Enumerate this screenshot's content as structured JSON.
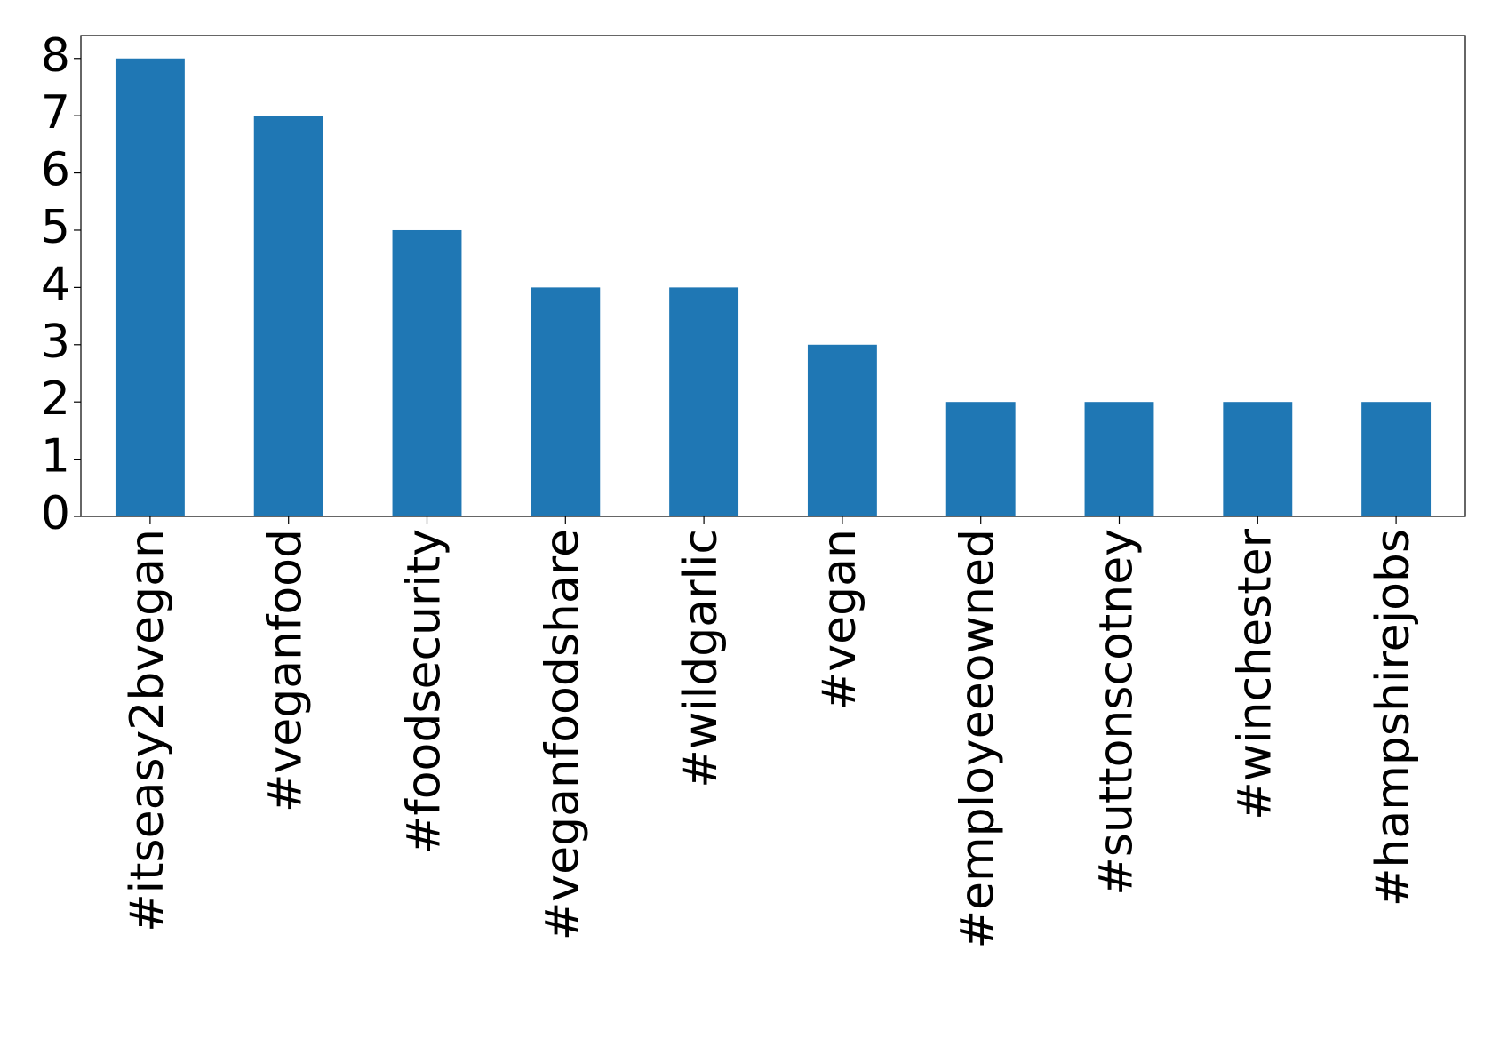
{
  "chart_data": {
    "type": "bar",
    "categories": [
      "#itseasy2bvegan",
      "#veganfood",
      "#foodsecurity",
      "#veganfoodshare",
      "#wildgarlic",
      "#vegan",
      "#employeeowned",
      "#suttonscotney",
      "#winchester",
      "#hampshirejobs"
    ],
    "values": [
      8,
      7,
      5,
      4,
      4,
      3,
      2,
      2,
      2,
      2
    ],
    "color": "#1f77b4",
    "ylim": [
      0,
      8.4
    ],
    "yticks": [
      0,
      1,
      2,
      3,
      4,
      5,
      6,
      7,
      8
    ],
    "grid": false
  }
}
